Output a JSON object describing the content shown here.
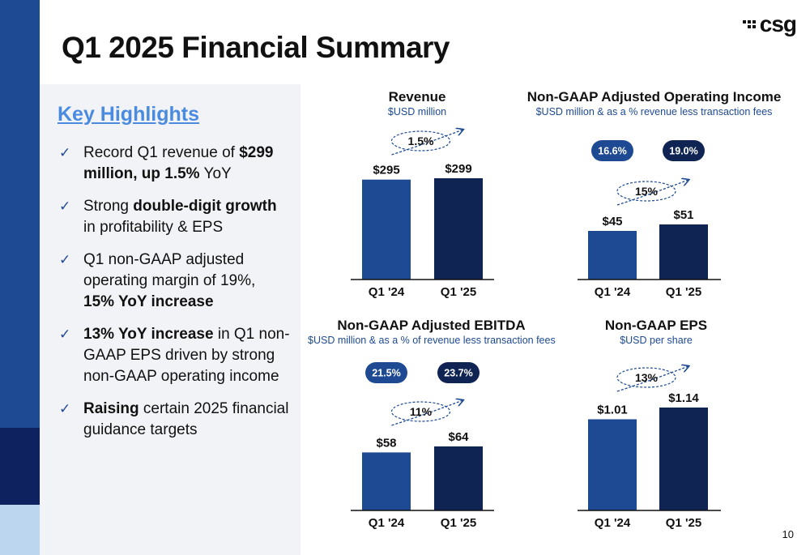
{
  "slide": {
    "title": "Q1 2025 Financial Summary",
    "logo_text": "csg",
    "page_number": "10",
    "colors": {
      "primary": "#1d4a92",
      "dark": "#0f2452",
      "accent_text": "#4a8be0"
    }
  },
  "highlights": {
    "heading": "Key Highlights",
    "bullets": [
      {
        "parts": [
          {
            "t": "Record Q1 revenue of ",
            "b": false
          },
          {
            "t": "$299 million, up 1.5%",
            "b": true
          },
          {
            "t": " YoY",
            "b": false
          }
        ]
      },
      {
        "parts": [
          {
            "t": "Strong ",
            "b": false
          },
          {
            "t": "double-digit growth",
            "b": true
          },
          {
            "t": " in profitability & EPS",
            "b": false
          }
        ]
      },
      {
        "parts": [
          {
            "t": "Q1 non-GAAP adjusted operating margin of 19%, ",
            "b": false
          },
          {
            "t": "15% YoY increase",
            "b": true
          }
        ]
      },
      {
        "parts": [
          {
            "t": "13% YoY increase",
            "b": true
          },
          {
            "t": " in Q1 non-GAAP EPS driven by strong non-GAAP operating income",
            "b": false
          }
        ]
      },
      {
        "parts": [
          {
            "t": "Raising",
            "b": true
          },
          {
            "t": " certain 2025 financial guidance targets",
            "b": false
          }
        ]
      }
    ]
  },
  "chart_data": [
    {
      "type": "bar",
      "title": "Revenue",
      "subtitle": "$USD million",
      "categories": [
        "Q1 '24",
        "Q1 '25"
      ],
      "values": [
        295,
        299
      ],
      "labels": [
        "$295",
        "$299"
      ],
      "growth": "1.5%",
      "margins": []
    },
    {
      "type": "bar",
      "title": "Non-GAAP Adjusted Operating Income",
      "subtitle": "$USD million & as a % revenue less transaction fees",
      "categories": [
        "Q1 '24",
        "Q1 '25"
      ],
      "values": [
        45,
        51
      ],
      "labels": [
        "$45",
        "$51"
      ],
      "growth": "15%",
      "margins": [
        "16.6%",
        "19.0%"
      ]
    },
    {
      "type": "bar",
      "title": "Non-GAAP Adjusted EBITDA",
      "subtitle": "$USD million & as a % of revenue less transaction fees",
      "categories": [
        "Q1 '24",
        "Q1 '25"
      ],
      "values": [
        58,
        64
      ],
      "labels": [
        "$58",
        "$64"
      ],
      "growth": "11%",
      "margins": [
        "21.5%",
        "23.7%"
      ]
    },
    {
      "type": "bar",
      "title": "Non-GAAP EPS",
      "subtitle": "$USD per share",
      "categories": [
        "Q1 '24",
        "Q1 '25"
      ],
      "values": [
        1.01,
        1.14
      ],
      "labels": [
        "$1.01",
        "$1.14"
      ],
      "growth": "13%",
      "margins": []
    }
  ]
}
